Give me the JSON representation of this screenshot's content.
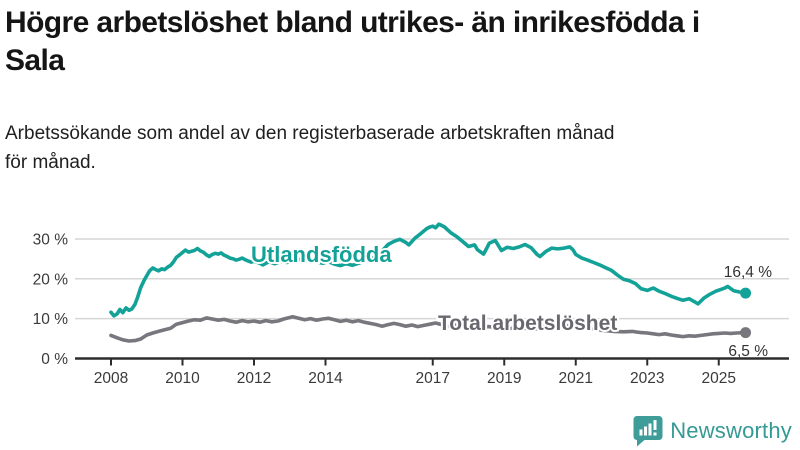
{
  "header": {
    "title_line1": "Högre arbetslöshet bland utrikes- än inrikesfödda i",
    "title_line2": "Sala",
    "subtitle_line1": "Arbetssökande som andel av den registerbaserade arbetskraften månad",
    "subtitle_line2": "för månad."
  },
  "footer": {
    "brand": "Newsworthy",
    "logo_icon": "bar-chart-speech-bubble"
  },
  "colors": {
    "accent_teal": "#13a298",
    "series_gray": "#77777d",
    "gray_label": "#68686e",
    "axis_text": "#3a3a3a",
    "gridline": "#d6d6d6",
    "axis_line": "#2d2d2d",
    "brand_teal": "#359994"
  },
  "chart_data": {
    "type": "line",
    "title": "Högre arbetslöshet bland utrikes- än inrikesfödda i Sala",
    "subtitle": "Arbetssökande som andel av den registerbaserade arbetskraften månad för månad.",
    "x_unit": "decimal_year",
    "xlim": [
      2007.0,
      2026.0
    ],
    "ylim": [
      0,
      36
    ],
    "grid": "horizontal",
    "legend_position": "inline-labels",
    "x_tick_labels": [
      "2008",
      "2010",
      "2012",
      "2014",
      "2017",
      "2019",
      "2021",
      "2023",
      "2025"
    ],
    "x_ticks": [
      2008,
      2010,
      2012,
      2014,
      2017,
      2019,
      2021,
      2023,
      2025
    ],
    "y_tick_labels": [
      "0 %",
      "10 %",
      "20 %",
      "30 %"
    ],
    "y_ticks": [
      0,
      10,
      20,
      30
    ],
    "series": [
      {
        "name": "Utlandsfödda",
        "color": "#13a298",
        "end_label": "16,4 %",
        "end_value": 16.4,
        "points": [
          [
            2008.0,
            11.6
          ],
          [
            2008.08,
            10.7
          ],
          [
            2008.17,
            11.2
          ],
          [
            2008.25,
            12.3
          ],
          [
            2008.33,
            11.5
          ],
          [
            2008.42,
            12.7
          ],
          [
            2008.5,
            12.1
          ],
          [
            2008.58,
            12.4
          ],
          [
            2008.67,
            13.6
          ],
          [
            2008.75,
            15.5
          ],
          [
            2008.83,
            17.8
          ],
          [
            2008.92,
            19.5
          ],
          [
            2009.0,
            20.8
          ],
          [
            2009.08,
            22.0
          ],
          [
            2009.17,
            22.7
          ],
          [
            2009.25,
            22.3
          ],
          [
            2009.33,
            22.0
          ],
          [
            2009.42,
            22.5
          ],
          [
            2009.5,
            22.3
          ],
          [
            2009.58,
            22.9
          ],
          [
            2009.67,
            23.4
          ],
          [
            2009.75,
            24.3
          ],
          [
            2009.83,
            25.4
          ],
          [
            2009.92,
            26.0
          ],
          [
            2010.0,
            26.6
          ],
          [
            2010.08,
            27.2
          ],
          [
            2010.17,
            26.7
          ],
          [
            2010.25,
            26.9
          ],
          [
            2010.33,
            27.1
          ],
          [
            2010.42,
            27.6
          ],
          [
            2010.5,
            27.0
          ],
          [
            2010.58,
            26.7
          ],
          [
            2010.67,
            26.0
          ],
          [
            2010.75,
            25.6
          ],
          [
            2010.83,
            26.1
          ],
          [
            2010.92,
            26.4
          ],
          [
            2011.0,
            26.2
          ],
          [
            2011.08,
            26.5
          ],
          [
            2011.17,
            25.9
          ],
          [
            2011.25,
            25.6
          ],
          [
            2011.33,
            25.2
          ],
          [
            2011.42,
            25.0
          ],
          [
            2011.5,
            24.7
          ],
          [
            2011.58,
            24.9
          ],
          [
            2011.67,
            25.2
          ],
          [
            2011.75,
            24.8
          ],
          [
            2011.83,
            24.5
          ],
          [
            2011.92,
            24.2
          ],
          [
            2012.0,
            24.4
          ],
          [
            2012.17,
            23.9
          ],
          [
            2012.25,
            23.5
          ],
          [
            2012.42,
            24.3
          ],
          [
            2012.58,
            23.8
          ],
          [
            2012.75,
            24.4
          ],
          [
            2012.92,
            24.1
          ],
          [
            2013.08,
            24.7
          ],
          [
            2013.25,
            24.9
          ],
          [
            2013.42,
            24.4
          ],
          [
            2013.58,
            24.8
          ],
          [
            2013.75,
            24.3
          ],
          [
            2013.92,
            23.9
          ],
          [
            2014.08,
            24.3
          ],
          [
            2014.25,
            23.7
          ],
          [
            2014.42,
            23.3
          ],
          [
            2014.58,
            23.8
          ],
          [
            2014.75,
            23.4
          ],
          [
            2014.92,
            23.9
          ],
          [
            2015.08,
            24.4
          ],
          [
            2015.25,
            24.9
          ],
          [
            2015.42,
            25.7
          ],
          [
            2015.58,
            27.0
          ],
          [
            2015.75,
            28.6
          ],
          [
            2015.92,
            29.4
          ],
          [
            2016.08,
            29.9
          ],
          [
            2016.25,
            29.1
          ],
          [
            2016.33,
            28.5
          ],
          [
            2016.5,
            30.2
          ],
          [
            2016.67,
            31.4
          ],
          [
            2016.83,
            32.6
          ],
          [
            2016.92,
            33.0
          ],
          [
            2017.0,
            33.2
          ],
          [
            2017.08,
            32.8
          ],
          [
            2017.17,
            33.7
          ],
          [
            2017.25,
            33.4
          ],
          [
            2017.33,
            33.0
          ],
          [
            2017.5,
            31.6
          ],
          [
            2017.67,
            30.6
          ],
          [
            2017.83,
            29.4
          ],
          [
            2018.0,
            28.1
          ],
          [
            2018.17,
            28.5
          ],
          [
            2018.25,
            27.3
          ],
          [
            2018.42,
            26.2
          ],
          [
            2018.5,
            27.5
          ],
          [
            2018.58,
            28.9
          ],
          [
            2018.75,
            29.6
          ],
          [
            2018.92,
            27.1
          ],
          [
            2019.08,
            27.9
          ],
          [
            2019.25,
            27.6
          ],
          [
            2019.42,
            28.0
          ],
          [
            2019.58,
            28.6
          ],
          [
            2019.75,
            27.8
          ],
          [
            2019.92,
            26.1
          ],
          [
            2020.0,
            25.6
          ],
          [
            2020.17,
            26.9
          ],
          [
            2020.33,
            27.7
          ],
          [
            2020.5,
            27.5
          ],
          [
            2020.67,
            27.7
          ],
          [
            2020.83,
            28.0
          ],
          [
            2020.92,
            27.3
          ],
          [
            2021.0,
            26.1
          ],
          [
            2021.17,
            25.2
          ],
          [
            2021.33,
            24.7
          ],
          [
            2021.5,
            24.1
          ],
          [
            2021.67,
            23.5
          ],
          [
            2021.83,
            22.8
          ],
          [
            2022.0,
            22.1
          ],
          [
            2022.17,
            20.9
          ],
          [
            2022.33,
            19.9
          ],
          [
            2022.5,
            19.5
          ],
          [
            2022.67,
            18.8
          ],
          [
            2022.83,
            17.5
          ],
          [
            2023.0,
            17.1
          ],
          [
            2023.17,
            17.7
          ],
          [
            2023.33,
            16.9
          ],
          [
            2023.5,
            16.3
          ],
          [
            2023.67,
            15.6
          ],
          [
            2023.83,
            15.1
          ],
          [
            2024.0,
            14.6
          ],
          [
            2024.17,
            15.0
          ],
          [
            2024.33,
            14.2
          ],
          [
            2024.42,
            13.7
          ],
          [
            2024.58,
            15.1
          ],
          [
            2024.75,
            16.1
          ],
          [
            2024.92,
            16.9
          ],
          [
            2025.08,
            17.4
          ],
          [
            2025.17,
            17.7
          ],
          [
            2025.25,
            18.1
          ],
          [
            2025.42,
            17.0
          ],
          [
            2025.58,
            16.7
          ],
          [
            2025.75,
            16.4
          ]
        ]
      },
      {
        "name": "Total arbetslöshet",
        "color": "#77777d",
        "end_label": "6,5 %",
        "end_value": 6.5,
        "points": [
          [
            2008.0,
            5.8
          ],
          [
            2008.17,
            5.2
          ],
          [
            2008.33,
            4.7
          ],
          [
            2008.5,
            4.4
          ],
          [
            2008.67,
            4.5
          ],
          [
            2008.83,
            4.9
          ],
          [
            2009.0,
            5.9
          ],
          [
            2009.17,
            6.4
          ],
          [
            2009.33,
            6.8
          ],
          [
            2009.5,
            7.2
          ],
          [
            2009.67,
            7.6
          ],
          [
            2009.83,
            8.6
          ],
          [
            2010.0,
            9.0
          ],
          [
            2010.17,
            9.4
          ],
          [
            2010.33,
            9.7
          ],
          [
            2010.5,
            9.6
          ],
          [
            2010.67,
            10.2
          ],
          [
            2010.83,
            9.9
          ],
          [
            2011.0,
            9.6
          ],
          [
            2011.17,
            9.8
          ],
          [
            2011.33,
            9.4
          ],
          [
            2011.5,
            9.1
          ],
          [
            2011.67,
            9.5
          ],
          [
            2011.83,
            9.2
          ],
          [
            2012.0,
            9.4
          ],
          [
            2012.17,
            9.1
          ],
          [
            2012.33,
            9.5
          ],
          [
            2012.5,
            9.2
          ],
          [
            2012.67,
            9.4
          ],
          [
            2012.83,
            9.9
          ],
          [
            2013.0,
            10.3
          ],
          [
            2013.08,
            10.5
          ],
          [
            2013.25,
            10.1
          ],
          [
            2013.42,
            9.7
          ],
          [
            2013.58,
            10.0
          ],
          [
            2013.75,
            9.6
          ],
          [
            2013.92,
            9.9
          ],
          [
            2014.08,
            10.1
          ],
          [
            2014.25,
            9.7
          ],
          [
            2014.42,
            9.3
          ],
          [
            2014.58,
            9.6
          ],
          [
            2014.75,
            9.2
          ],
          [
            2014.92,
            9.5
          ],
          [
            2015.08,
            9.1
          ],
          [
            2015.25,
            8.8
          ],
          [
            2015.42,
            8.5
          ],
          [
            2015.58,
            8.1
          ],
          [
            2015.75,
            8.5
          ],
          [
            2015.92,
            8.8
          ],
          [
            2016.08,
            8.5
          ],
          [
            2016.25,
            8.1
          ],
          [
            2016.42,
            8.4
          ],
          [
            2016.58,
            8.0
          ],
          [
            2016.75,
            8.3
          ],
          [
            2016.92,
            8.6
          ],
          [
            2017.08,
            8.9
          ],
          [
            2017.25,
            8.5
          ],
          [
            2017.42,
            8.2
          ],
          [
            2017.58,
            8.5
          ],
          [
            2017.75,
            8.1
          ],
          [
            2017.92,
            8.3
          ],
          [
            2018.08,
            8.0
          ],
          [
            2018.33,
            7.8
          ],
          [
            2018.58,
            8.0
          ],
          [
            2018.83,
            7.6
          ],
          [
            2019.08,
            7.7
          ],
          [
            2019.33,
            7.4
          ],
          [
            2019.58,
            7.6
          ],
          [
            2019.83,
            7.3
          ],
          [
            2020.08,
            7.9
          ],
          [
            2020.33,
            8.6
          ],
          [
            2020.58,
            8.4
          ],
          [
            2020.83,
            8.1
          ],
          [
            2021.08,
            7.9
          ],
          [
            2021.33,
            7.5
          ],
          [
            2021.58,
            7.2
          ],
          [
            2021.83,
            7.0
          ],
          [
            2022.08,
            6.8
          ],
          [
            2022.33,
            6.7
          ],
          [
            2022.58,
            6.8
          ],
          [
            2022.83,
            6.5
          ],
          [
            2023.0,
            6.4
          ],
          [
            2023.17,
            6.2
          ],
          [
            2023.33,
            6.0
          ],
          [
            2023.5,
            6.2
          ],
          [
            2023.67,
            5.9
          ],
          [
            2023.83,
            5.7
          ],
          [
            2024.0,
            5.5
          ],
          [
            2024.17,
            5.7
          ],
          [
            2024.33,
            5.6
          ],
          [
            2024.5,
            5.8
          ],
          [
            2024.67,
            6.0
          ],
          [
            2024.83,
            6.2
          ],
          [
            2025.0,
            6.3
          ],
          [
            2025.17,
            6.4
          ],
          [
            2025.33,
            6.3
          ],
          [
            2025.5,
            6.4
          ],
          [
            2025.75,
            6.5
          ]
        ]
      }
    ]
  }
}
